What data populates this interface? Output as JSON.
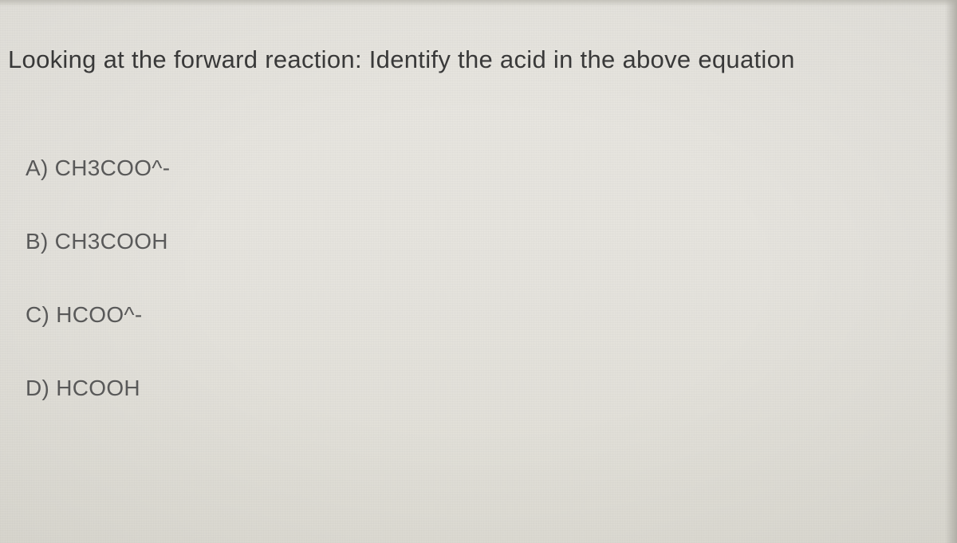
{
  "question": {
    "prompt": "Looking at the forward reaction: Identify the acid in the above equation",
    "options": [
      {
        "label": "A) CH3COO^-"
      },
      {
        "label": "B) CH3COOH"
      },
      {
        "label": "C) HCOO^-"
      },
      {
        "label": "D) HCOOH"
      }
    ]
  },
  "style": {
    "background_color": "#e6e4de",
    "text_color_primary": "#3a3a3a",
    "text_color_secondary": "#5a5a5a",
    "question_fontsize": 31,
    "option_fontsize": 28,
    "option_spacing": 60
  }
}
